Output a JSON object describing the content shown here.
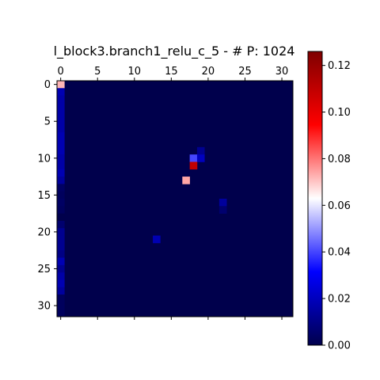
{
  "chart_data": {
    "type": "heatmap",
    "title": "l_block3.branch1_relu_c_5 - # P: 1024",
    "xlabel": "",
    "ylabel": "",
    "n_rows": 32,
    "n_cols": 32,
    "background_value": 0.0,
    "x_ticks": [
      "0",
      "5",
      "10",
      "15",
      "20",
      "25",
      "30"
    ],
    "y_ticks": [
      "0",
      "5",
      "10",
      "15",
      "20",
      "25",
      "30"
    ],
    "x_tick_position": "top",
    "colormap": "seismic",
    "colorbar": {
      "min": 0.0,
      "max": 0.126,
      "ticks": [
        "0.00",
        "0.02",
        "0.04",
        "0.06",
        "0.08",
        "0.10",
        "0.12"
      ]
    },
    "cells": [
      {
        "row": 0,
        "col": 0,
        "value": 0.072
      },
      {
        "row": 1,
        "col": 0,
        "value": 0.018
      },
      {
        "row": 2,
        "col": 0,
        "value": 0.016
      },
      {
        "row": 3,
        "col": 0,
        "value": 0.016
      },
      {
        "row": 4,
        "col": 0,
        "value": 0.016
      },
      {
        "row": 5,
        "col": 0,
        "value": 0.016
      },
      {
        "row": 6,
        "col": 0,
        "value": 0.016
      },
      {
        "row": 7,
        "col": 0,
        "value": 0.018
      },
      {
        "row": 8,
        "col": 0,
        "value": 0.018
      },
      {
        "row": 9,
        "col": 0,
        "value": 0.018
      },
      {
        "row": 10,
        "col": 0,
        "value": 0.016
      },
      {
        "row": 11,
        "col": 0,
        "value": 0.016
      },
      {
        "row": 12,
        "col": 0,
        "value": 0.018
      },
      {
        "row": 13,
        "col": 0,
        "value": 0.014
      },
      {
        "row": 14,
        "col": 0,
        "value": 0.004
      },
      {
        "row": 15,
        "col": 0,
        "value": 0.003
      },
      {
        "row": 16,
        "col": 0,
        "value": 0.004
      },
      {
        "row": 17,
        "col": 0,
        "value": 0.003
      },
      {
        "row": 18,
        "col": 0,
        "value": 0.0
      },
      {
        "row": 19,
        "col": 0,
        "value": 0.006
      },
      {
        "row": 20,
        "col": 0,
        "value": 0.012
      },
      {
        "row": 21,
        "col": 0,
        "value": 0.012
      },
      {
        "row": 22,
        "col": 0,
        "value": 0.012
      },
      {
        "row": 23,
        "col": 0,
        "value": 0.01
      },
      {
        "row": 24,
        "col": 0,
        "value": 0.018
      },
      {
        "row": 25,
        "col": 0,
        "value": 0.012
      },
      {
        "row": 26,
        "col": 0,
        "value": 0.016
      },
      {
        "row": 27,
        "col": 0,
        "value": 0.018
      },
      {
        "row": 28,
        "col": 0,
        "value": 0.014
      },
      {
        "row": 29,
        "col": 0,
        "value": 0.003
      },
      {
        "row": 30,
        "col": 0,
        "value": 0.003
      },
      {
        "row": 31,
        "col": 0,
        "value": 0.003
      },
      {
        "row": 9,
        "col": 19,
        "value": 0.012
      },
      {
        "row": 10,
        "col": 18,
        "value": 0.04
      },
      {
        "row": 10,
        "col": 19,
        "value": 0.02
      },
      {
        "row": 11,
        "col": 18,
        "value": 0.11
      },
      {
        "row": 13,
        "col": 17,
        "value": 0.074
      },
      {
        "row": 16,
        "col": 22,
        "value": 0.014
      },
      {
        "row": 17,
        "col": 22,
        "value": 0.006
      },
      {
        "row": 21,
        "col": 13,
        "value": 0.018
      }
    ]
  }
}
